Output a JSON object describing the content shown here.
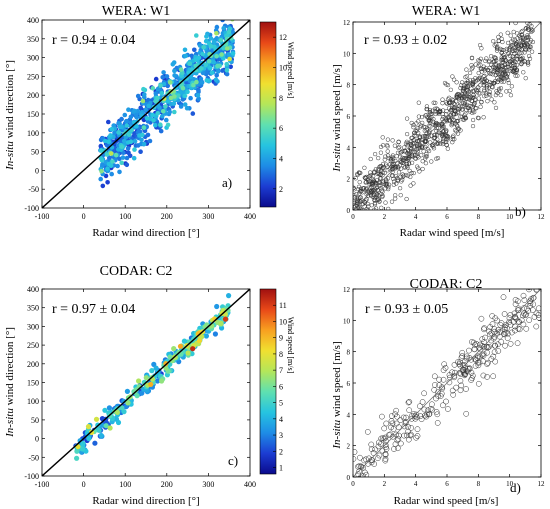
{
  "colorbar_colors": [
    "#0a0a8c",
    "#1c3cd2",
    "#1e8ce6",
    "#26c4e0",
    "#5fe0b0",
    "#b4e65a",
    "#f0e030",
    "#f8a020",
    "#e84818",
    "#a01010"
  ],
  "chart_data": [
    {
      "panel": "a)",
      "type": "scatter",
      "title": "WERA: W1",
      "annotation": "r = 0.94 ± 0.04",
      "xlabel": "Radar wind direction [°]",
      "ylabel_italic": "In-situ",
      "ylabel_rest": " wind direction [°]",
      "xlim": [
        -100,
        400
      ],
      "ylim": [
        -100,
        400
      ],
      "xticks": [
        "-100",
        "0",
        "100",
        "200",
        "300",
        "400"
      ],
      "yticks": [
        "-100",
        "-50",
        "0",
        "50",
        "100",
        "150",
        "200",
        "250",
        "300",
        "350",
        "400"
      ],
      "reference_line": "1:1",
      "colorbar": {
        "label": "Wind speed [m/s]",
        "range": [
          0.8,
          13
        ],
        "ticks": [
          "2",
          "4",
          "6",
          "8",
          "10",
          "12"
        ]
      },
      "point_cloud": {
        "count": 850,
        "x_range": [
          40,
          360
        ],
        "slope": 1.0,
        "intercept": -10,
        "spread": 35
      }
    },
    {
      "panel": "b)",
      "type": "scatter",
      "title": "WERA: W1",
      "annotation": "r = 0.93 ± 0.02",
      "xlabel": "Radar wind speed [m/s]",
      "ylabel_italic": "In-situ",
      "ylabel_rest": " wind speed [m/s]",
      "xlim": [
        0,
        12
      ],
      "ylim": [
        0,
        12
      ],
      "xticks": [
        "0",
        "2",
        "4",
        "6",
        "8",
        "10",
        "12"
      ],
      "yticks": [
        "0",
        "2",
        "4",
        "6",
        "8",
        "10",
        "12"
      ],
      "reference_line": "1:1",
      "point_cloud": {
        "count": 1100,
        "x_range": [
          0,
          11.5
        ],
        "slope": 0.95,
        "intercept": 0.2,
        "spread": 0.95
      }
    },
    {
      "panel": "c)",
      "type": "scatter",
      "title": "CODAR: C2",
      "annotation": "r = 0.97 ± 0.04",
      "xlabel": "Radar wind direction [°]",
      "ylabel_italic": "In-situ",
      "ylabel_rest": " wind direction [°]",
      "xlim": [
        -100,
        400
      ],
      "ylim": [
        -100,
        400
      ],
      "xticks": [
        "-100",
        "0",
        "100",
        "200",
        "300",
        "400"
      ],
      "yticks": [
        "-100",
        "-50",
        "0",
        "50",
        "100",
        "150",
        "200",
        "250",
        "300",
        "350",
        "400"
      ],
      "reference_line": "1:1",
      "colorbar": {
        "label": "Wind speed [m/s]",
        "range": [
          0.6,
          12
        ],
        "ticks": [
          "1",
          "2",
          "3",
          "4",
          "5",
          "6",
          "7",
          "8",
          "9",
          "10",
          "11"
        ]
      },
      "point_cloud": {
        "count": 320,
        "x_range": [
          -20,
          350
        ],
        "slope": 1.0,
        "intercept": -5,
        "spread": 14
      }
    },
    {
      "panel": "d)",
      "type": "scatter",
      "title": "CODAR: C2",
      "annotation": "r = 0.93 ± 0.05",
      "xlabel": "Radar wind speed [m/s]",
      "ylabel_italic": "In-situ",
      "ylabel_rest": " wind speed [m/s]",
      "xlim": [
        0,
        12
      ],
      "ylim": [
        0,
        12
      ],
      "xticks": [
        "0",
        "2",
        "4",
        "6",
        "8",
        "10",
        "12"
      ],
      "yticks": [
        "0",
        "2",
        "4",
        "6",
        "8",
        "10",
        "12"
      ],
      "reference_line": "1:1",
      "point_cloud": {
        "count": 330,
        "x_range": [
          0,
          12
        ],
        "slope": 0.95,
        "intercept": 0.25,
        "spread": 0.85
      }
    }
  ]
}
